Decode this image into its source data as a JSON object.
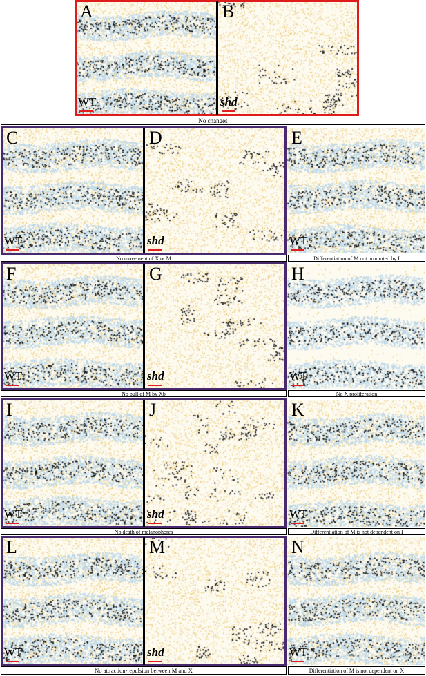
{
  "panels": {
    "A": {
      "letter": "A",
      "genotype": "WT",
      "italic": false,
      "kind": "wt"
    },
    "B": {
      "letter": "B",
      "genotype": "shd",
      "italic": true,
      "kind": "shd"
    },
    "C": {
      "letter": "C",
      "genotype": "WT",
      "italic": false,
      "kind": "wt"
    },
    "D": {
      "letter": "D",
      "genotype": "shd",
      "italic": true,
      "kind": "shd"
    },
    "E": {
      "letter": "E",
      "genotype": "WT",
      "italic": false,
      "kind": "wt"
    },
    "F": {
      "letter": "F",
      "genotype": "WT",
      "italic": false,
      "kind": "wt"
    },
    "G": {
      "letter": "G",
      "genotype": "shd",
      "italic": true,
      "kind": "shd"
    },
    "H": {
      "letter": "H",
      "genotype": "WT",
      "italic": false,
      "kind": "noX"
    },
    "I": {
      "letter": "I",
      "genotype": "WT",
      "italic": false,
      "kind": "wt"
    },
    "J": {
      "letter": "J",
      "genotype": "shd",
      "italic": true,
      "kind": "shdscatter"
    },
    "K": {
      "letter": "K",
      "genotype": "WT",
      "italic": false,
      "kind": "wt"
    },
    "L": {
      "letter": "L",
      "genotype": "WT",
      "italic": false,
      "kind": "wt"
    },
    "M": {
      "letter": "M",
      "genotype": "shd",
      "italic": true,
      "kind": "shd"
    },
    "N": {
      "letter": "N",
      "genotype": "WT",
      "italic": false,
      "kind": "wt"
    }
  },
  "captions": {
    "no_changes": "No changes",
    "no_movement": "No movement of X or M",
    "diff_not_promoted_I": "Differentiation of M not promoted by I",
    "no_pull": "No pull of M by Xb",
    "no_x_prolif": "No X proliferation",
    "no_death": "No death of melanophores",
    "diff_not_dependent_I": "Differentiation of M is not dependent on I",
    "no_attraction": "No attraction-repulsion between M and X",
    "diff_not_dependent_X": "Differentiation of M is not dependent on X"
  },
  "colors": {
    "red_frame": "#e01b1b",
    "purple_frame": "#4a2a6e",
    "xanthophore": "#e8c66a",
    "iridophore": "#bcd8ea",
    "melanophore": "#111111",
    "background": "#fdfaf0",
    "scale_bar": "#e02020"
  }
}
